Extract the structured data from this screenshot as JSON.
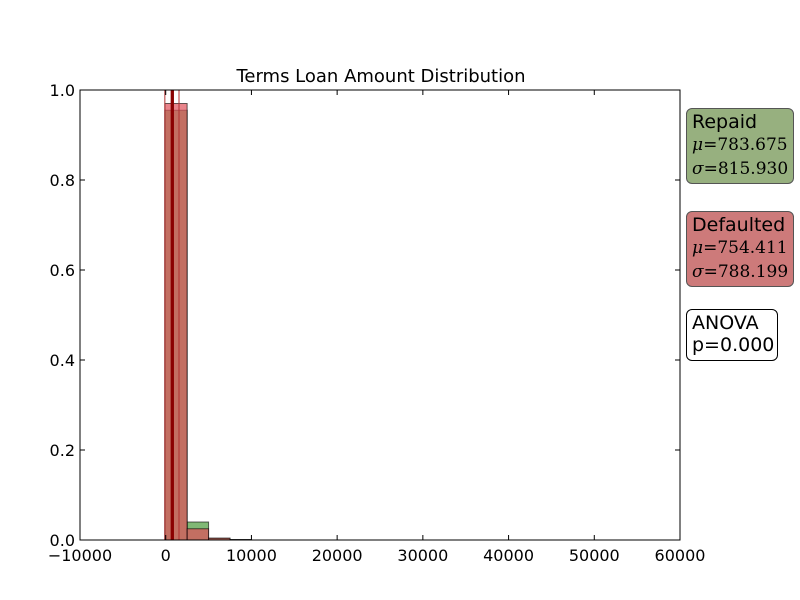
{
  "chart_data": {
    "type": "histogram",
    "title": "Terms Loan Amount Distribution",
    "xlabel": "",
    "ylabel": "",
    "xlim": [
      -10000,
      60000
    ],
    "ylim": [
      0,
      1.0
    ],
    "xticks": [
      "−10000",
      "0",
      "10000",
      "20000",
      "30000",
      "40000",
      "50000",
      "60000"
    ],
    "xtick_values": [
      -10000,
      0,
      10000,
      20000,
      30000,
      40000,
      50000,
      60000
    ],
    "yticks": [
      "0.0",
      "0.2",
      "0.4",
      "0.6",
      "0.8",
      "1.0"
    ],
    "ytick_values": [
      0,
      0.2,
      0.4,
      0.6,
      0.8,
      1.0
    ],
    "grid": false,
    "bin_edges": [
      -100,
      2500,
      5000,
      7500,
      10000
    ],
    "series": [
      {
        "name": "Repaid",
        "color": "#4a9a3a",
        "values": [
          0.955,
          0.04,
          0.004,
          0.001
        ],
        "mean": 783.675
      },
      {
        "name": "Defaulted",
        "color": "#e0505a",
        "values": [
          0.97,
          0.025,
          0.004,
          0.001
        ],
        "mean": 754.411
      }
    ],
    "std_lines_color": "#b03030"
  },
  "stats": {
    "repaid": {
      "label": "Repaid",
      "mu": "783.675",
      "sigma": "815.930",
      "color": "#97b07f"
    },
    "defaulted": {
      "label": "Defaulted",
      "mu": "754.411",
      "sigma": "788.199",
      "color": "#cd7a7a"
    },
    "anova": {
      "label": "ANOVA",
      "p": "p=0.000"
    },
    "mu_symbol": "μ",
    "sigma_symbol": "σ",
    "eq": "="
  }
}
